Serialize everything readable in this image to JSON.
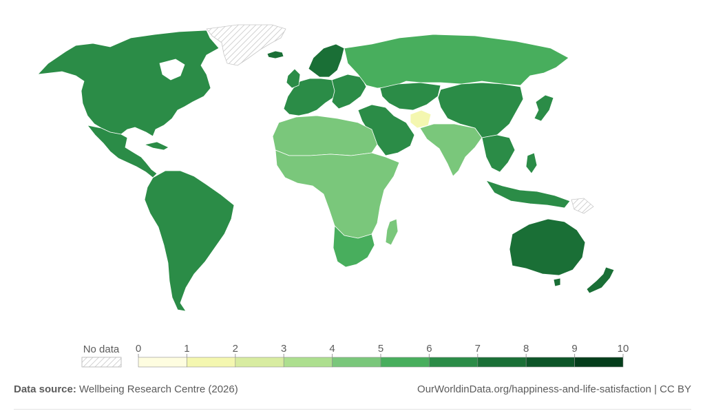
{
  "legend": {
    "no_data_label": "No data",
    "ticks": [
      "0",
      "1",
      "2",
      "3",
      "4",
      "5",
      "6",
      "7",
      "8",
      "9",
      "10"
    ],
    "colors": [
      "#fefde0",
      "#f4f7b0",
      "#d8eca1",
      "#addf8f",
      "#7ac77b",
      "#48ae5d",
      "#2b8c47",
      "#1a6f36",
      "#0d5528",
      "#043d1b"
    ]
  },
  "footer": {
    "source_label": "Data source:",
    "source_text": " Wellbeing Research Centre (2026)",
    "url_text": "OurWorldinData.org/happiness-and-life-satisfaction | CC BY"
  },
  "chart_data": {
    "type": "choropleth",
    "scale_min": 0,
    "scale_max": 10,
    "regions": [
      {
        "name": "North America",
        "value": 6.8
      },
      {
        "name": "Mexico & Central America",
        "value": 6.7
      },
      {
        "name": "South America",
        "value": 6.3
      },
      {
        "name": "Northern Europe",
        "value": 7.4
      },
      {
        "name": "Western Europe",
        "value": 6.8
      },
      {
        "name": "Eastern Europe",
        "value": 6.0
      },
      {
        "name": "Russia",
        "value": 5.8
      },
      {
        "name": "Middle East",
        "value": 6.5
      },
      {
        "name": "Central Asia",
        "value": 6.3
      },
      {
        "name": "China",
        "value": 6.2
      },
      {
        "name": "India",
        "value": 4.3
      },
      {
        "name": "Afghanistan",
        "value": 1.4
      },
      {
        "name": "Southeast Asia",
        "value": 6.2
      },
      {
        "name": "Japan",
        "value": 6.1
      },
      {
        "name": "North Africa",
        "value": 4.8
      },
      {
        "name": "Sub-Saharan Africa",
        "value": 4.2
      },
      {
        "name": "Southern Africa",
        "value": 5.2
      },
      {
        "name": "Madagascar",
        "value": 4.4
      },
      {
        "name": "Australia",
        "value": 7.0
      },
      {
        "name": "New Zealand",
        "value": 7.0
      },
      {
        "name": "Greenland",
        "value": null
      }
    ]
  }
}
